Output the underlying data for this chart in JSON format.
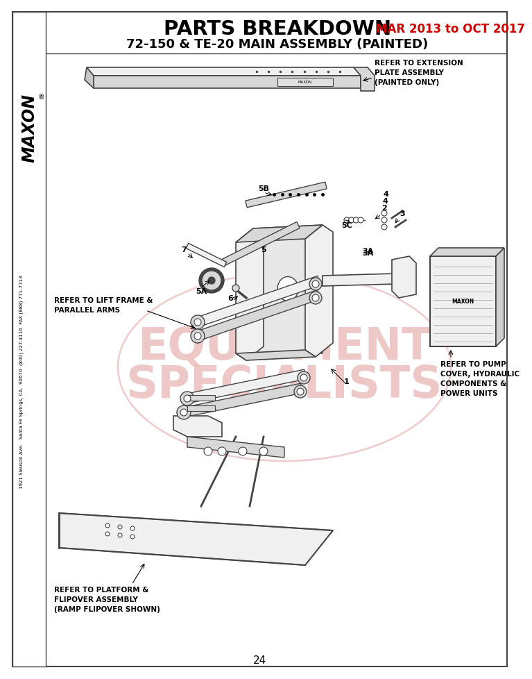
{
  "title_main": "PARTS BREAKDOWN",
  "title_date": "MAR 2013 to OCT 2017",
  "title_sub": "72-150 & TE-20 MAIN ASSEMBLY (PAINTED)",
  "page_number": "24",
  "sidebar_text": "MAXON",
  "sidebar_address": "1921 Slauson Ave.   Santa Fe Springs, CA.  90670  (800) 227-4116  FAX (888) 771-7713",
  "watermark_line1": "EQUIPMENT",
  "watermark_line2": "SPECIALISTS",
  "bg_color": "#ffffff",
  "border_color": "#000000",
  "title_color": "#000000",
  "date_color": "#cc0000",
  "watermark_color": "#e8b0b0",
  "draw_color": "#444444",
  "light_fill": "#f0f0f0",
  "mid_fill": "#d8d8d8"
}
